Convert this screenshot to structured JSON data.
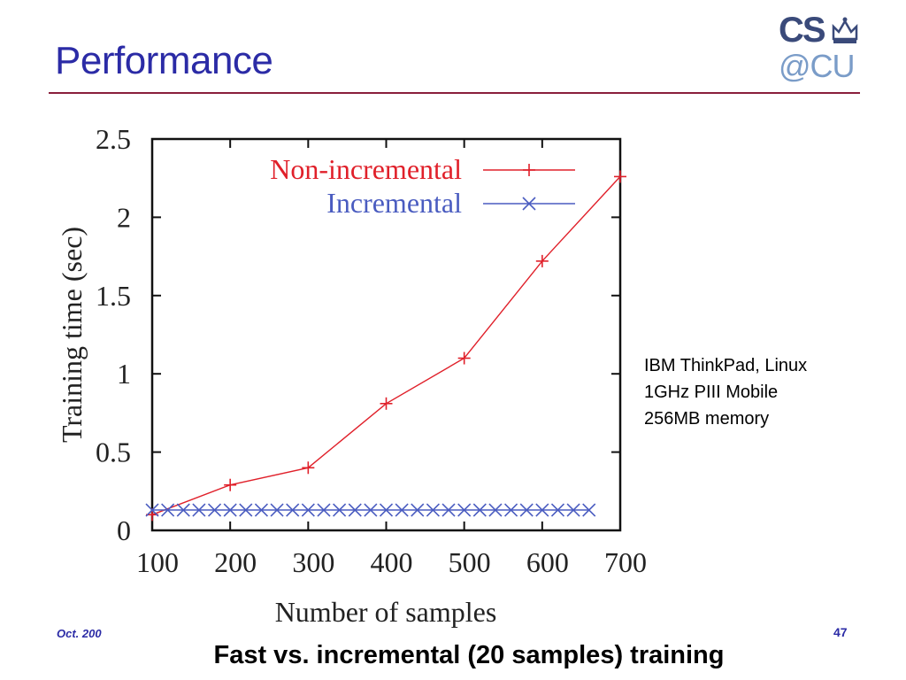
{
  "slide": {
    "title": "Performance",
    "footer_date": "Oct. 200",
    "page_number": "47",
    "caption": "Fast vs. incremental (20 samples) training",
    "note_lines": [
      "IBM ThinkPad, Linux",
      "1GHz PIII Mobile",
      "256MB memory"
    ]
  },
  "logo": {
    "line1": "CS",
    "line2": "@CU",
    "icon": "crown-icon"
  },
  "colors": {
    "title": "#2b2ba6",
    "rule": "#8a1f3c",
    "non_incremental": "#e0202a",
    "incremental": "#4a5cc0"
  },
  "chart_data": {
    "type": "line",
    "title": "",
    "xlabel": "Number of samples",
    "ylabel": "Training time (sec)",
    "xlim": [
      100,
      700
    ],
    "ylim": [
      0,
      2.5
    ],
    "xticks": [
      100,
      200,
      300,
      400,
      500,
      600,
      700
    ],
    "yticks": [
      0,
      0.5,
      1,
      1.5,
      2,
      2.5
    ],
    "ytick_labels": [
      "0",
      "0.5",
      "1",
      "1.5",
      "2",
      "2.5"
    ],
    "legend_position": "top-right",
    "series": [
      {
        "name": "Non-incremental",
        "marker": "plus",
        "x": [
          100,
          200,
          300,
          400,
          500,
          600,
          700
        ],
        "y": [
          0.1,
          0.29,
          0.4,
          0.81,
          1.1,
          1.72,
          2.26
        ]
      },
      {
        "name": "Incremental",
        "marker": "cross",
        "x": [
          100,
          120,
          140,
          160,
          180,
          200,
          220,
          240,
          260,
          280,
          300,
          320,
          340,
          360,
          380,
          400,
          420,
          440,
          460,
          480,
          500,
          520,
          540,
          560,
          580,
          600,
          620,
          640,
          660
        ],
        "y": [
          0.13,
          0.13,
          0.13,
          0.13,
          0.13,
          0.13,
          0.13,
          0.13,
          0.13,
          0.13,
          0.13,
          0.13,
          0.13,
          0.13,
          0.13,
          0.13,
          0.13,
          0.13,
          0.13,
          0.13,
          0.13,
          0.13,
          0.13,
          0.13,
          0.13,
          0.13,
          0.13,
          0.13,
          0.13
        ]
      }
    ]
  }
}
